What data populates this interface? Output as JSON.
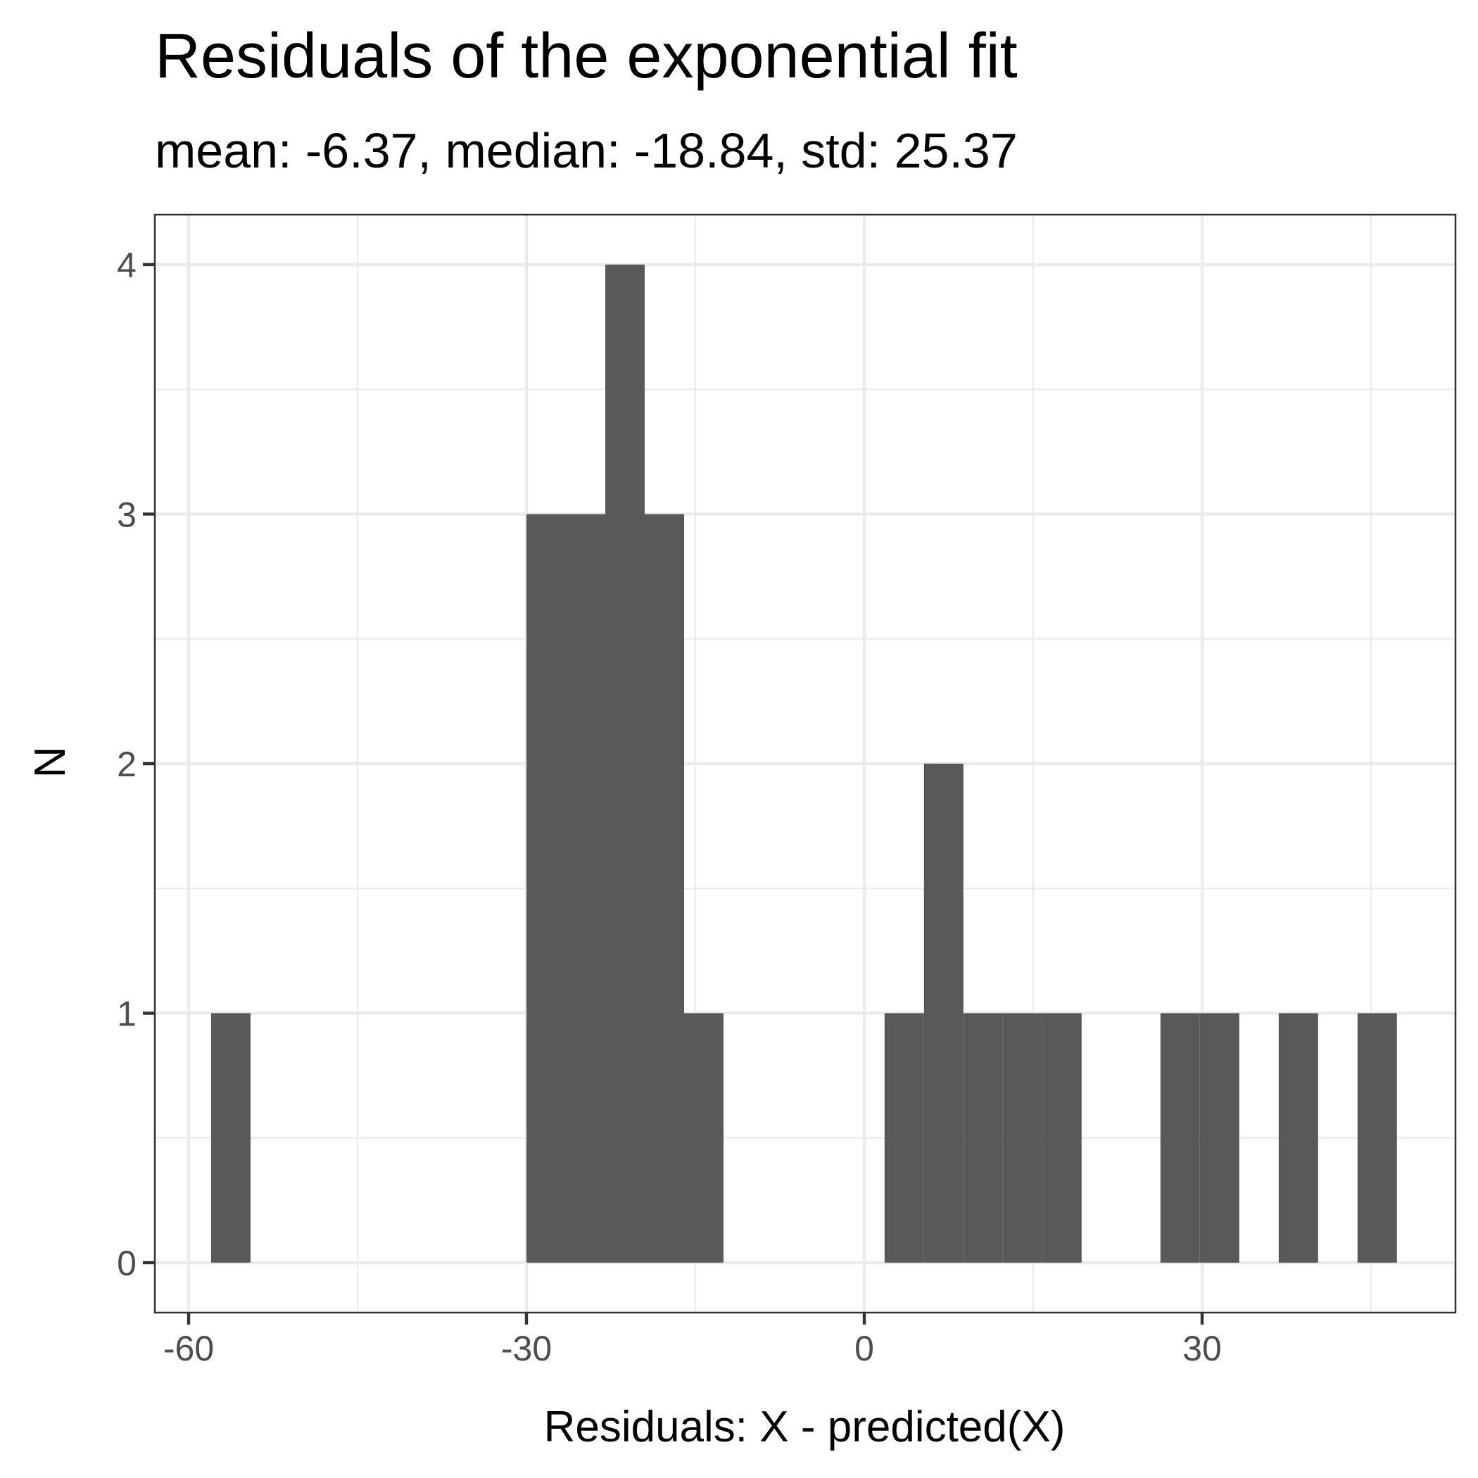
{
  "chart_data": {
    "type": "bar",
    "title": "Residuals of the exponential fit",
    "subtitle": "mean: -6.37, median: -18.84, std: 25.37",
    "xlabel": "Residuals: X - predicted(X)",
    "ylabel": "N",
    "xlim": [
      -63,
      52.5
    ],
    "ylim": [
      -0.2,
      4.2
    ],
    "x_ticks": [
      -60,
      -30,
      0,
      30
    ],
    "x_tick_labels": [
      "-60",
      "-30",
      "0",
      "30"
    ],
    "y_ticks": [
      0,
      1,
      2,
      3,
      4
    ],
    "y_tick_labels": [
      "0",
      "1",
      "2",
      "3",
      "4"
    ],
    "grid": true,
    "bin_width": 3.5,
    "bins": [
      {
        "x_start": -58,
        "x_end": -54.5,
        "count": 1
      },
      {
        "x_start": -30,
        "x_end": -26.5,
        "count": 3
      },
      {
        "x_start": -26.5,
        "x_end": -23,
        "count": 3
      },
      {
        "x_start": -23,
        "x_end": -19.5,
        "count": 4
      },
      {
        "x_start": -19.5,
        "x_end": -16,
        "count": 3
      },
      {
        "x_start": -16,
        "x_end": -12.5,
        "count": 1
      },
      {
        "x_start": 1.8,
        "x_end": 5.3,
        "count": 1
      },
      {
        "x_start": 5.3,
        "x_end": 8.8,
        "count": 2
      },
      {
        "x_start": 8.8,
        "x_end": 12.3,
        "count": 1
      },
      {
        "x_start": 12.3,
        "x_end": 15.8,
        "count": 1
      },
      {
        "x_start": 15.8,
        "x_end": 19.3,
        "count": 1
      },
      {
        "x_start": 26.3,
        "x_end": 29.8,
        "count": 1
      },
      {
        "x_start": 29.8,
        "x_end": 33.3,
        "count": 1
      },
      {
        "x_start": 36.8,
        "x_end": 40.3,
        "count": 1
      },
      {
        "x_start": 43.8,
        "x_end": 47.3,
        "count": 1
      }
    ],
    "bar_color": "#595959",
    "grid_color": "#ebebeb",
    "panel_border_color": "#333333"
  }
}
